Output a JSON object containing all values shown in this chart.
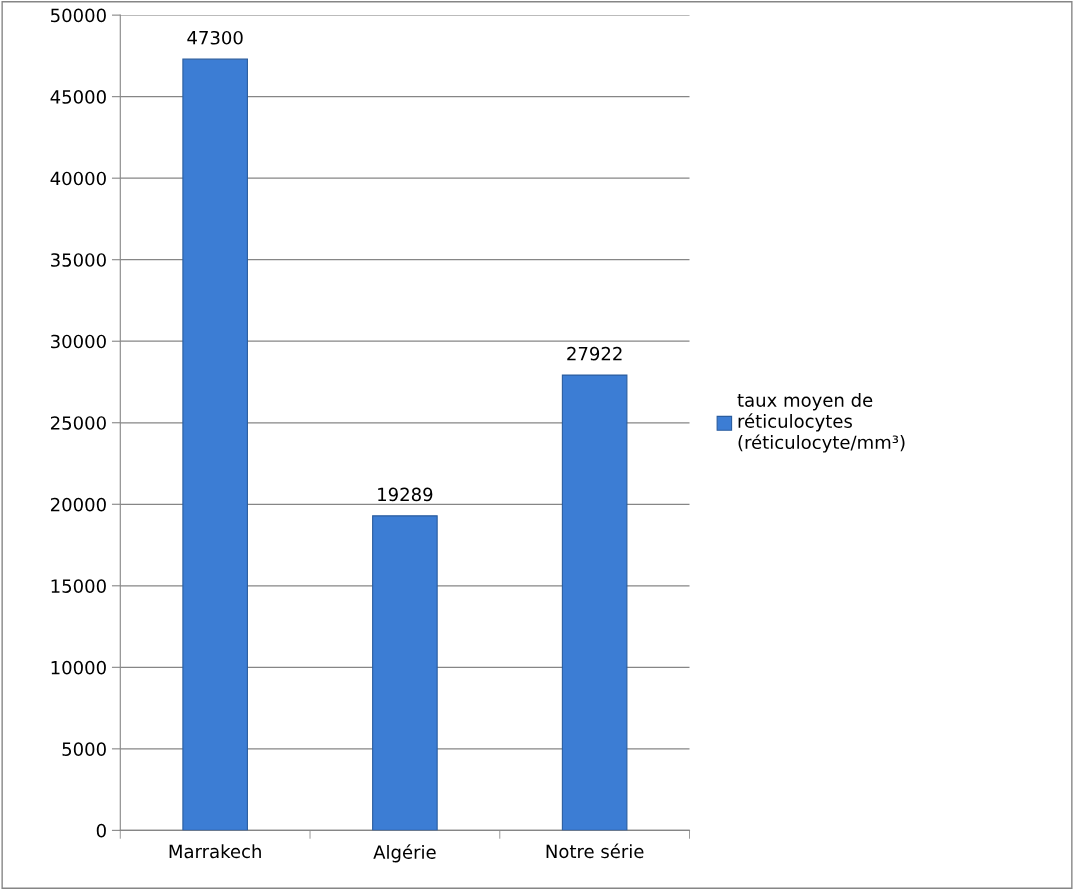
{
  "chart_data": {
    "type": "bar",
    "categories": [
      "Marrakech",
      "Algérie",
      "Notre série"
    ],
    "series": [
      {
        "name": "taux moyen de\nréticulocytes\n(réticulocyte/mm³)",
        "color": "#3c7dd4",
        "values": [
          47300,
          19289,
          27922
        ]
      }
    ],
    "ylim": [
      0,
      50000
    ],
    "yticks": [
      0,
      5000,
      10000,
      15000,
      20000,
      25000,
      30000,
      35000,
      40000,
      45000,
      50000
    ],
    "grid": "y",
    "legend": "right",
    "data_labels": true
  }
}
